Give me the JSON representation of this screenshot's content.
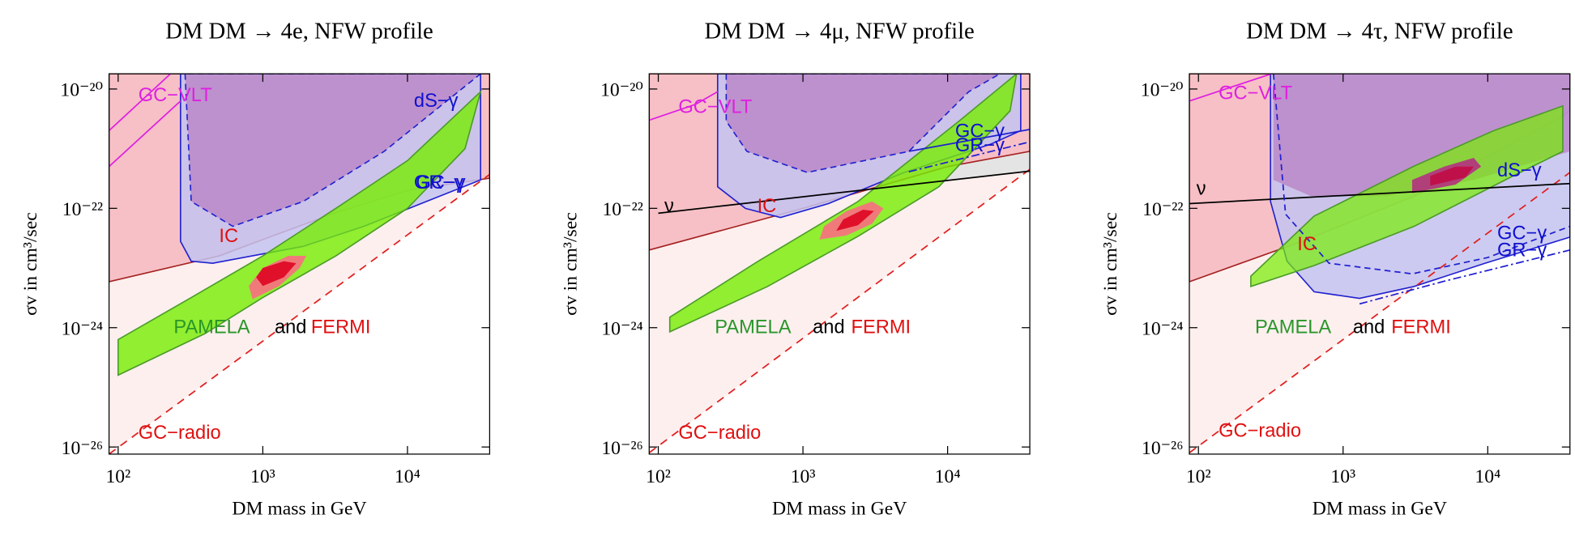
{
  "chart_data": [
    {
      "type": "region",
      "title": "DM DM → 4e, NFW profile",
      "xlabel": "DM mass in GeV",
      "ylabel": "σv in cm³/sec",
      "log_x": true,
      "log_y": true,
      "xlim": [
        86.5,
        37000
      ],
      "ylim": [
        7.6e-27,
        1.8e-20
      ],
      "xticks": [
        {
          "value": 100,
          "label": "10²"
        },
        {
          "value": 1000,
          "label": "10³"
        },
        {
          "value": 10000,
          "label": "10⁴"
        }
      ],
      "yticks": [
        {
          "value": 1e-26,
          "label": "10⁻²⁶"
        },
        {
          "value": 1e-24,
          "label": "10⁻²⁴"
        },
        {
          "value": 1e-22,
          "label": "10⁻²²"
        },
        {
          "value": 1e-20,
          "label": "10⁻²⁰"
        }
      ],
      "regions": [
        {
          "color": "#fcefee",
          "x": [
            86.5,
            37000,
            37000,
            86.5
          ],
          "y": [
            7.6e-27,
            3.7e-22,
            1.8e-20,
            1.8e-20
          ]
        },
        {
          "color": "#f6c0c6",
          "stroke": "#a52020",
          "x": [
            86.5,
            500,
            1000,
            3000,
            10000,
            37000,
            37000,
            86.5
          ],
          "y": [
            5.9e-24,
            1.6e-23,
            3e-23,
            8e-23,
            2e-22,
            3.2e-22,
            1.8e-20,
            1.8e-20
          ]
        },
        {
          "color": "#c3c3f0",
          "opacity": 0.85,
          "stroke": "#2020d0",
          "x": [
            270,
            270,
            320,
            450,
            1900,
            5000,
            32000,
            32000
          ],
          "y": [
            1.8e-20,
            2.8e-23,
            1.3e-23,
            1.2e-23,
            2.3e-23,
            5e-23,
            3e-22,
            1.8e-20
          ]
        },
        {
          "color": "#b77cc0",
          "opacity": 0.7,
          "stroke": "#2020d0",
          "dash": "6 4",
          "x": [
            290,
            320,
            620,
            1900,
            6900,
            32000
          ],
          "y": [
            1.8e-20,
            1.3e-22,
            5e-23,
            1.3e-22,
            9e-22,
            1.8e-20
          ]
        },
        {
          "color": "#76ee00",
          "opacity": 0.8,
          "stroke": "#4c9a2a",
          "x": [
            100,
            400,
            1000,
            3200,
            10000,
            25000,
            32000,
            10000,
            3200,
            1000,
            320,
            100
          ],
          "y": [
            1.6e-25,
            8e-25,
            3.2e-24,
            1.6e-23,
            1e-22,
            1e-21,
            9e-21,
            6.3e-22,
            1e-22,
            1.6e-23,
            3.2e-24,
            6.3e-25
          ]
        },
        {
          "color": "#f07a7a",
          "x": [
            850,
            1300,
            1800,
            2000,
            1500,
            1000,
            800
          ],
          "y": [
            3e-24,
            5e-24,
            1e-23,
            1.6e-23,
            1.6e-23,
            1e-23,
            5e-24
          ]
        },
        {
          "color": "#e0102a",
          "x": [
            1000,
            1400,
            1700,
            1400,
            1000,
            900
          ],
          "y": [
            5e-24,
            7e-24,
            1.2e-23,
            1.3e-23,
            1e-23,
            7e-24
          ]
        }
      ],
      "lines": [
        {
          "color": "#e02020",
          "dash": "8 6",
          "x": [
            86.5,
            37000
          ],
          "y": [
            7.6e-27,
            3.7e-22
          ]
        },
        {
          "color": "#e020e0",
          "x": [
            86.5,
            230
          ],
          "y": [
            2e-21,
            1.8e-20
          ]
        },
        {
          "color": "#e020e0",
          "x": [
            86.5,
            270
          ],
          "y": [
            5e-22,
            6.3e-21
          ]
        }
      ],
      "annotations": [
        {
          "text": "GC−VLT",
          "color": "#e020e0"
        },
        {
          "text": "dS−γ",
          "color": "#1010d0"
        },
        {
          "text": "GR−γ",
          "color": "#1010d0"
        },
        {
          "text": "GC−γ",
          "color": "#1010d0"
        },
        {
          "text": "IC",
          "color": "#e01010"
        },
        {
          "text": "PAMELA",
          "color": "#2a962a"
        },
        {
          "text": "and",
          "color": "#000000"
        },
        {
          "text": "FERMI",
          "color": "#e01010"
        },
        {
          "text": "GC−radio",
          "color": "#e01010"
        }
      ]
    },
    {
      "type": "region",
      "title": "DM DM → 4μ, NFW profile",
      "xlabel": "DM mass in GeV",
      "ylabel": "σv in cm³/sec",
      "log_x": true,
      "log_y": true,
      "xlim": [
        86.5,
        37000
      ],
      "ylim": [
        7.6e-27,
        1.8e-20
      ],
      "xticks": [
        {
          "value": 100,
          "label": "10²"
        },
        {
          "value": 1000,
          "label": "10³"
        },
        {
          "value": 10000,
          "label": "10⁴"
        }
      ],
      "yticks": [
        {
          "value": 1e-26,
          "label": "10⁻²⁶"
        },
        {
          "value": 1e-24,
          "label": "10⁻²⁴"
        },
        {
          "value": 1e-22,
          "label": "10⁻²²"
        },
        {
          "value": 1e-20,
          "label": "10⁻²⁰"
        }
      ],
      "regions": [
        {
          "color": "#fcefee",
          "x": [
            86.5,
            37000,
            37000,
            86.5
          ],
          "y": [
            8e-27,
            4.5e-22,
            1.8e-20,
            1.8e-20
          ]
        },
        {
          "color": "#e4e4e4",
          "x": [
            86.5,
            37000,
            37000,
            86.5
          ],
          "y": [
            8e-23,
            4.2e-22,
            1.8e-20,
            1.8e-20
          ]
        },
        {
          "color": "#f6c0c6",
          "stroke": "#a52020",
          "x": [
            86.5,
            1000,
            10000,
            37000,
            37000,
            86.5
          ],
          "y": [
            2e-23,
            1e-22,
            5e-22,
            9e-22,
            1.8e-20,
            1.8e-20
          ]
        },
        {
          "color": "#c3c3f0",
          "opacity": 0.85,
          "stroke": "#2020d0",
          "x": [
            257,
            257,
            400,
            700,
            1500,
            5000,
            20000,
            32000,
            32000
          ],
          "y": [
            1.8e-20,
            2.3e-22,
            1e-22,
            7e-23,
            1.2e-22,
            4e-22,
            1.2e-21,
            2e-21,
            1.8e-20
          ]
        },
        {
          "color": "#b77cc0",
          "opacity": 0.7,
          "stroke": "#2020d0",
          "dash": "6 4",
          "x": [
            295,
            295,
            410,
            1070,
            5400,
            14000,
            23000
          ],
          "y": [
            1.8e-20,
            2.9e-21,
            9e-22,
            4e-22,
            9e-22,
            9e-21,
            1.8e-20
          ]
        },
        {
          "color": "#76ee00",
          "opacity": 0.8,
          "stroke": "#4c9a2a",
          "x": [
            120,
            570,
            2400,
            8700,
            27000,
            30000,
            12000,
            2400,
            490,
            120
          ],
          "y": [
            8.5e-25,
            4.9e-24,
            3.4e-23,
            2.3e-22,
            4.3e-21,
            1.8e-20,
            2.9e-21,
            1.3e-22,
            1.3e-23,
            1.5e-24
          ]
        },
        {
          "color": "#f07a7a",
          "x": [
            1300,
            2000,
            3000,
            3600,
            3000,
            2000,
            1400
          ],
          "y": [
            3e-23,
            3.5e-23,
            5.5e-23,
            1e-22,
            1.3e-22,
            9e-23,
            5e-23
          ]
        },
        {
          "color": "#e0102a",
          "x": [
            1700,
            2400,
            3100,
            2600,
            1900
          ],
          "y": [
            4.2e-23,
            5.2e-23,
            9e-23,
            9.5e-23,
            6.5e-23
          ]
        }
      ],
      "lines": [
        {
          "color": "#e02020",
          "dash": "8 6",
          "x": [
            86.5,
            37000
          ],
          "y": [
            8e-27,
            4.5e-22
          ]
        },
        {
          "color": "#e020e0",
          "x": [
            86.5,
            180,
            257
          ],
          "y": [
            3e-21,
            5.5e-21,
            9e-21
          ]
        },
        {
          "color": "#000000",
          "x": [
            100,
            37000
          ],
          "y": [
            8.3e-23,
            4.2e-22
          ]
        },
        {
          "color": "#2020d0",
          "x": [
            5400,
            37000
          ],
          "y": [
            9e-22,
            2.1e-21
          ]
        },
        {
          "color": "#2020d0",
          "dash": "8 3 2 3",
          "x": [
            5400,
            37000
          ],
          "y": [
            4.1e-22,
            1.3e-21
          ]
        }
      ],
      "annotations": [
        {
          "text": "GC−VLT",
          "color": "#e020e0"
        },
        {
          "text": "GC−γ",
          "color": "#1010d0"
        },
        {
          "text": "GR−γ",
          "color": "#1010d0"
        },
        {
          "text": "ν",
          "color": "#000000"
        },
        {
          "text": "IC",
          "color": "#e01010"
        },
        {
          "text": "PAMELA",
          "color": "#2a962a"
        },
        {
          "text": "and",
          "color": "#000000"
        },
        {
          "text": "FERMI",
          "color": "#e01010"
        },
        {
          "text": "GC−radio",
          "color": "#e01010"
        }
      ]
    },
    {
      "type": "region",
      "title": "DM DM → 4τ, NFW profile",
      "xlabel": "DM mass in GeV",
      "ylabel": "σv in cm³/sec",
      "log_x": true,
      "log_y": true,
      "xlim": [
        86.5,
        37000
      ],
      "ylim": [
        7.6e-27,
        1.8e-20
      ],
      "xticks": [
        {
          "value": 100,
          "label": "10²"
        },
        {
          "value": 1000,
          "label": "10³"
        },
        {
          "value": 10000,
          "label": "10⁴"
        }
      ],
      "yticks": [
        {
          "value": 1e-26,
          "label": "10⁻²⁶"
        },
        {
          "value": 1e-24,
          "label": "10⁻²⁴"
        },
        {
          "value": 1e-22,
          "label": "10⁻²²"
        },
        {
          "value": 1e-20,
          "label": "10⁻²⁰"
        }
      ],
      "regions": [
        {
          "color": "#fcefee",
          "x": [
            86.5,
            37000,
            37000,
            86.5
          ],
          "y": [
            8e-27,
            4e-22,
            1.8e-20,
            1.8e-20
          ]
        },
        {
          "color": "#f6c0c6",
          "stroke": "#a52020",
          "x": [
            86.5,
            520,
            3100,
            33000,
            37000,
            37000,
            86.5
          ],
          "y": [
            5.9e-24,
            2.8e-23,
            1.6e-22,
            3.5e-21,
            4.5e-21,
            1.8e-20,
            1.8e-20
          ]
        },
        {
          "color": "#c3c3f0",
          "opacity": 0.85,
          "stroke": "#2020d0",
          "x": [
            315,
            315,
            410,
            630,
            1300,
            3100,
            9600,
            37000,
            37000
          ],
          "y": [
            1.8e-20,
            1.3e-22,
            1.3e-23,
            4e-24,
            3.1e-24,
            4.9e-24,
            1.2e-23,
            3.3e-23,
            1.8e-20
          ]
        },
        {
          "color": "#b77cc0",
          "opacity": 0.7,
          "x": [
            330,
            330,
            600,
            2000,
            8000,
            37000,
            37000
          ],
          "y": [
            1.8e-20,
            3e-22,
            1.6e-22,
            1.6e-22,
            3e-22,
            9e-22,
            1.8e-20
          ]
        },
        {
          "color": "#76ee00",
          "opacity": 0.7,
          "stroke": "#4c9a2a",
          "x": [
            230,
            630,
            3100,
            15000,
            33000,
            33000,
            11000,
            3100,
            630,
            230
          ],
          "y": [
            4.9e-24,
            1.1e-23,
            5e-23,
            3.5e-22,
            9e-22,
            5.2e-21,
            2e-21,
            5.1e-22,
            7.4e-23,
            7.3e-24
          ]
        },
        {
          "color": "#b0407a",
          "x": [
            3000,
            6000,
            9000,
            8000,
            5000,
            3000
          ],
          "y": [
            1.8e-22,
            2.5e-22,
            5e-22,
            7e-22,
            5e-22,
            3e-22
          ]
        },
        {
          "color": "#c0104a",
          "x": [
            4000,
            7000,
            8000,
            6000,
            4000
          ],
          "y": [
            2.4e-22,
            3.3e-22,
            5e-22,
            5e-22,
            3.5e-22
          ]
        }
      ],
      "lines": [
        {
          "color": "#e02020",
          "dash": "8 6",
          "x": [
            86.5,
            37000
          ],
          "y": [
            8e-27,
            4e-22
          ]
        },
        {
          "color": "#e020e0",
          "x": [
            86.5,
            320
          ],
          "y": [
            6.3e-21,
            1.8e-20
          ]
        },
        {
          "color": "#000000",
          "x": [
            86.5,
            37000
          ],
          "y": [
            1.2e-22,
            2.6e-22
          ]
        },
        {
          "color": "#2020d0",
          "dash": "6 4",
          "x": [
            330,
            400,
            800,
            3000,
            10000,
            37000
          ],
          "y": [
            1.8e-20,
            8e-23,
            1.2e-23,
            8e-24,
            1.5e-23,
            5e-23
          ]
        },
        {
          "color": "#2020d0",
          "dash": "8 3 2 3",
          "x": [
            1300,
            5000,
            37000
          ],
          "y": [
            2.5e-24,
            6e-24,
            2e-23
          ]
        }
      ],
      "annotations": [
        {
          "text": "GC−VLT",
          "color": "#e020e0"
        },
        {
          "text": "dS−γ",
          "color": "#1010d0"
        },
        {
          "text": "ν",
          "color": "#000000"
        },
        {
          "text": "IC",
          "color": "#e01010"
        },
        {
          "text": "GC−γ",
          "color": "#1010d0"
        },
        {
          "text": "GR−γ",
          "color": "#1010d0"
        },
        {
          "text": "PAMELA",
          "color": "#2a962a"
        },
        {
          "text": "and",
          "color": "#000000"
        },
        {
          "text": "FERMI",
          "color": "#e01010"
        },
        {
          "text": "GC−radio",
          "color": "#e01010"
        }
      ]
    }
  ]
}
